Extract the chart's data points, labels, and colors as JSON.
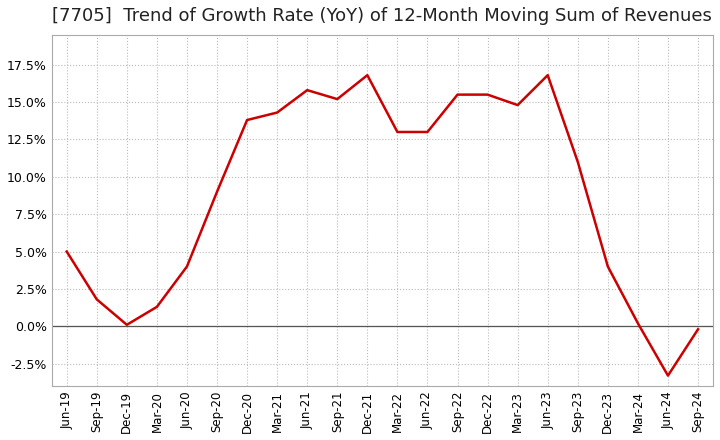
{
  "title": "[7705]  Trend of Growth Rate (YoY) of 12-Month Moving Sum of Revenues",
  "title_fontsize": 13,
  "line_color": "#cc0000",
  "background_color": "#ffffff",
  "grid_color": "#bbbbbb",
  "ylim": [
    -0.04,
    0.195
  ],
  "yticks": [
    -0.025,
    0.0,
    0.025,
    0.05,
    0.075,
    0.1,
    0.125,
    0.15,
    0.175
  ],
  "x_labels": [
    "Jun-19",
    "Sep-19",
    "Dec-19",
    "Mar-20",
    "Jun-20",
    "Sep-20",
    "Dec-20",
    "Mar-21",
    "Jun-21",
    "Sep-21",
    "Dec-21",
    "Mar-22",
    "Jun-22",
    "Sep-22",
    "Dec-22",
    "Mar-23",
    "Jun-23",
    "Sep-23",
    "Dec-23",
    "Mar-24",
    "Jun-24",
    "Sep-24"
  ],
  "y_values": [
    0.05,
    0.018,
    0.001,
    0.013,
    0.04,
    0.09,
    0.138,
    0.143,
    0.158,
    0.152,
    0.168,
    0.13,
    0.13,
    0.155,
    0.155,
    0.148,
    0.168,
    0.11,
    0.04,
    0.002,
    -0.033,
    -0.002
  ]
}
